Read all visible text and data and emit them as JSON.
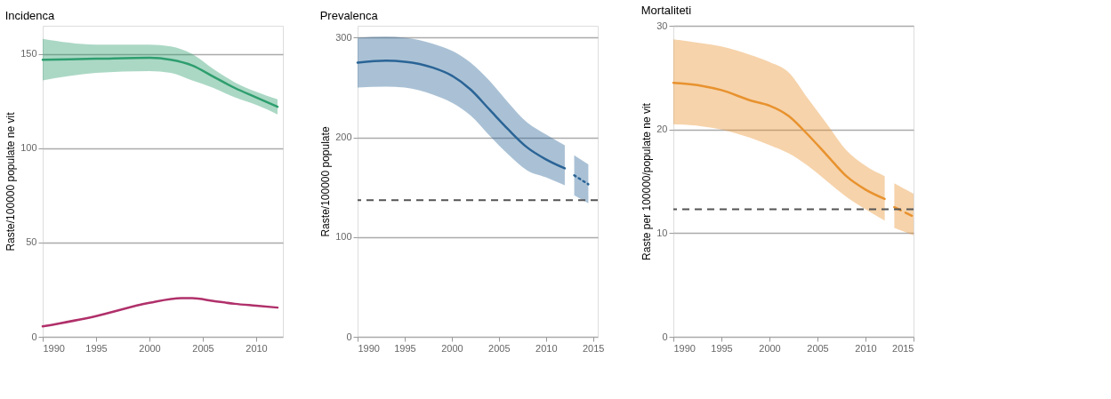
{
  "chart_data": [
    {
      "type": "line",
      "title": "Incidenca",
      "ylabel": "Raste/100000 populate ne vit",
      "xlim": [
        1990,
        2012.5
      ],
      "xticks": [
        1990,
        1995,
        2000,
        2005,
        2010
      ],
      "ylim": [
        0,
        165
      ],
      "yticks": [
        0,
        50,
        100,
        150
      ],
      "grid": "y",
      "series": [
        {
          "color": "#2e9e6e",
          "line_style": "solid",
          "x": [
            1990,
            1995,
            2000,
            2002,
            2004,
            2006,
            2008,
            2010,
            2012
          ],
          "values": [
            147,
            147.5,
            148,
            147,
            144,
            138,
            132,
            127,
            122
          ],
          "lower": [
            136,
            140,
            141,
            140,
            136,
            132,
            127,
            123,
            118
          ],
          "upper": [
            158,
            155,
            155,
            154,
            150,
            142,
            135,
            130,
            126
          ]
        },
        {
          "color": "#b0306a",
          "line_style": "solid",
          "x": [
            1990,
            1995,
            2000,
            2003,
            2004,
            2006,
            2008,
            2010,
            2012
          ],
          "values": [
            5.5,
            11,
            18,
            20.5,
            20.5,
            19,
            17.5,
            16.5,
            15.5
          ]
        }
      ]
    },
    {
      "type": "line",
      "title": "Prevalenca",
      "ylabel": "Raste/100000 populate",
      "xlim": [
        1990,
        2015.5
      ],
      "xticks": [
        1990,
        1995,
        2000,
        2005,
        2010,
        2015
      ],
      "ylim": [
        0,
        312
      ],
      "yticks": [
        0,
        100,
        200,
        300
      ],
      "grid": "y",
      "series": [
        {
          "color": "#2a6496",
          "line_style": "solid",
          "x": [
            1990,
            1993,
            1995,
            1998,
            2000,
            2002,
            2004,
            2006,
            2008,
            2010,
            2012
          ],
          "values": [
            275,
            277,
            276,
            270,
            262,
            248,
            228,
            208,
            190,
            178,
            169
          ],
          "lower": [
            250,
            251,
            250,
            243,
            235,
            222,
            202,
            183,
            167,
            160,
            152
          ],
          "upper": [
            300,
            301,
            300,
            294,
            287,
            275,
            257,
            235,
            215,
            203,
            192
          ]
        },
        {
          "color": "#2a6496",
          "line_style": "dotted",
          "x": [
            2013,
            2014.5
          ],
          "values": [
            162,
            153
          ],
          "lower": [
            142,
            134
          ],
          "upper": [
            182,
            173
          ]
        }
      ],
      "ref_lines": [
        {
          "axis": "y",
          "value": 137,
          "color": "#555555",
          "line_style": "dashed"
        }
      ]
    },
    {
      "type": "line",
      "title": "Mortaliteti",
      "ylabel": "Raste per 100000/populate ne vit",
      "xlim": [
        1990,
        2015
      ],
      "xticks": [
        1990,
        1995,
        2000,
        2005,
        2010,
        2015
      ],
      "ylim": [
        0,
        30
      ],
      "yticks": [
        0,
        10,
        20,
        30
      ],
      "grid": "y",
      "series": [
        {
          "color": "#e8922e",
          "line_style": "solid",
          "x": [
            1990,
            1993,
            1995,
            1998,
            2000,
            2002,
            2004,
            2006,
            2008,
            2010,
            2012
          ],
          "values": [
            24.5,
            24.2,
            23.8,
            22.8,
            22.3,
            21.3,
            19.5,
            17.5,
            15.5,
            14.2,
            13.3
          ],
          "lower": [
            20.5,
            20.3,
            20,
            19.2,
            18.5,
            17.7,
            16.5,
            15,
            13.5,
            12.3,
            11.2
          ],
          "upper": [
            28.7,
            28.3,
            28,
            27.2,
            26.5,
            25.5,
            23,
            20.5,
            18,
            16.5,
            15.5
          ]
        },
        {
          "color": "#e8922e",
          "line_style": "dashed",
          "x": [
            2013,
            2015
          ],
          "values": [
            12.5,
            11.6
          ],
          "lower": [
            10.5,
            9.8
          ],
          "upper": [
            14.8,
            13.8
          ]
        }
      ],
      "ref_lines": [
        {
          "axis": "y",
          "value": 12.3,
          "color": "#555555",
          "line_style": "dashed"
        }
      ]
    }
  ]
}
